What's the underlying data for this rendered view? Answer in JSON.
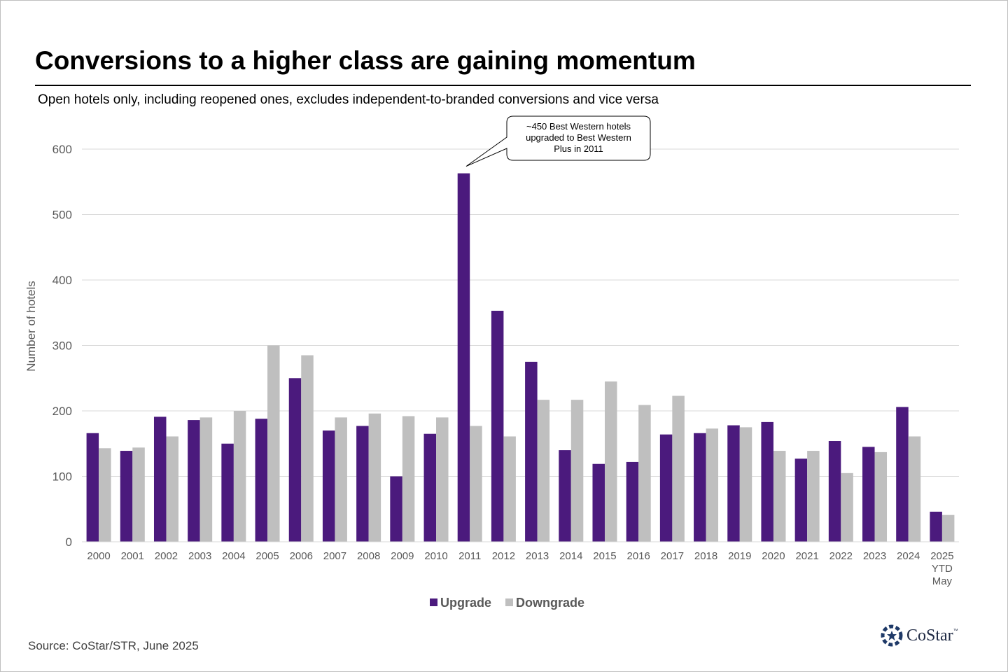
{
  "title": "Conversions to a higher class are gaining momentum",
  "subtitle": "Open hotels only, including reopened ones, excludes independent-to-branded conversions and vice versa",
  "source": "Source: CoStar/STR, June 2025",
  "logo": {
    "text": "CoStar",
    "tm": "™"
  },
  "chart_data": {
    "type": "bar",
    "title": "",
    "xlabel": "",
    "ylabel": "Number of hotels",
    "ylim": [
      0,
      600
    ],
    "yticks": [
      0,
      100,
      200,
      300,
      400,
      500,
      600
    ],
    "grid": true,
    "legend_position": "bottom",
    "categories": [
      [
        "2000"
      ],
      [
        "2001"
      ],
      [
        "2002"
      ],
      [
        "2003"
      ],
      [
        "2004"
      ],
      [
        "2005"
      ],
      [
        "2006"
      ],
      [
        "2007"
      ],
      [
        "2008"
      ],
      [
        "2009"
      ],
      [
        "2010"
      ],
      [
        "2011"
      ],
      [
        "2012"
      ],
      [
        "2013"
      ],
      [
        "2014"
      ],
      [
        "2015"
      ],
      [
        "2016"
      ],
      [
        "2017"
      ],
      [
        "2018"
      ],
      [
        "2019"
      ],
      [
        "2020"
      ],
      [
        "2021"
      ],
      [
        "2022"
      ],
      [
        "2023"
      ],
      [
        "2024"
      ],
      [
        "2025",
        "YTD",
        "May"
      ]
    ],
    "series": [
      {
        "name": "Upgrade",
        "color": "#4b1a7d",
        "values": [
          166,
          139,
          191,
          186,
          150,
          188,
          250,
          170,
          177,
          100,
          165,
          563,
          353,
          275,
          140,
          119,
          122,
          164,
          166,
          178,
          183,
          127,
          154,
          145,
          206,
          46
        ]
      },
      {
        "name": "Downgrade",
        "color": "#bfbfbf",
        "values": [
          143,
          144,
          161,
          190,
          200,
          300,
          285,
          190,
          196,
          192,
          190,
          177,
          161,
          217,
          217,
          245,
          209,
          223,
          173,
          175,
          139,
          139,
          105,
          137,
          161,
          41
        ]
      }
    ],
    "annotation": {
      "lines": [
        "~450 Best Western hotels",
        "upgraded to Best Western",
        "Plus in 2011"
      ],
      "target_category": "2011",
      "target_series": "Upgrade"
    }
  }
}
